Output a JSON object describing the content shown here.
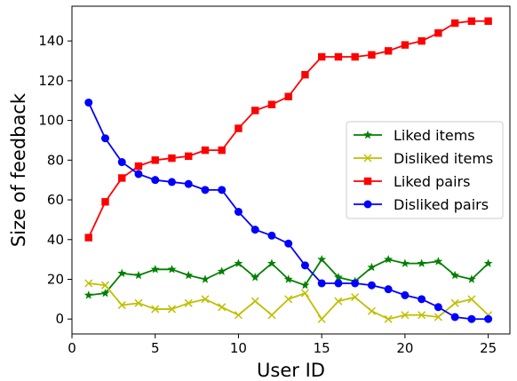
{
  "chart_data": {
    "type": "line",
    "title": "",
    "xlabel": "User ID",
    "ylabel": "Size of feedback",
    "xlim": [
      0,
      26.3
    ],
    "ylim": [
      -7.5,
      157.5
    ],
    "xticks": [
      0,
      5,
      10,
      15,
      20,
      25
    ],
    "yticks": [
      0,
      20,
      40,
      60,
      80,
      100,
      120,
      140
    ],
    "grid": false,
    "legend_position": "center-right",
    "x": [
      1,
      2,
      3,
      4,
      5,
      6,
      7,
      8,
      9,
      10,
      11,
      12,
      13,
      14,
      15,
      16,
      17,
      18,
      19,
      20,
      21,
      22,
      23,
      24,
      25
    ],
    "series": [
      {
        "name": "Liked items",
        "color": "#008000",
        "marker": "star",
        "values": [
          12,
          13,
          23,
          22,
          25,
          25,
          22,
          20,
          24,
          28,
          21,
          28,
          20,
          17,
          30,
          21,
          19,
          26,
          30,
          28,
          28,
          29,
          22,
          20,
          28
        ]
      },
      {
        "name": "Disliked items",
        "color": "#bfbf00",
        "marker": "x",
        "values": [
          18,
          17,
          7,
          8,
          5,
          5,
          8,
          10,
          6,
          2,
          9,
          2,
          10,
          13,
          0,
          9,
          11,
          4,
          0,
          2,
          2,
          1,
          8,
          10,
          2
        ]
      },
      {
        "name": "Liked pairs",
        "color": "#ff0000",
        "marker": "square",
        "values": [
          41,
          59,
          71,
          77,
          80,
          81,
          82,
          85,
          85,
          96,
          105,
          108,
          112,
          123,
          132,
          132,
          132,
          133,
          135,
          138,
          140,
          144,
          149,
          150,
          150
        ]
      },
      {
        "name": "Disliked pairs",
        "color": "#0000ff",
        "marker": "circle",
        "values": [
          109,
          91,
          79,
          73,
          70,
          69,
          68,
          65,
          65,
          54,
          45,
          42,
          38,
          27,
          18,
          18,
          18,
          17,
          15,
          12,
          10,
          6,
          1,
          0,
          0
        ]
      }
    ]
  }
}
